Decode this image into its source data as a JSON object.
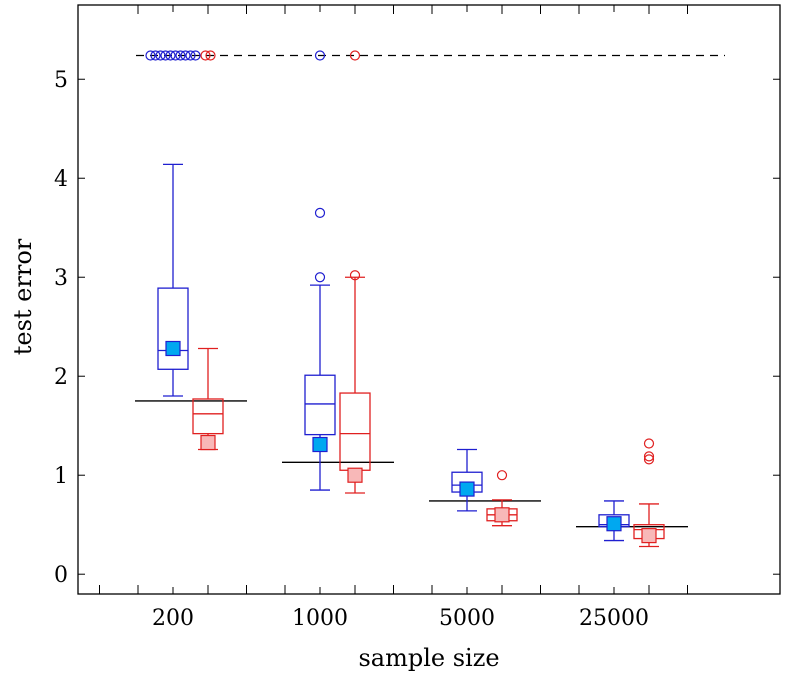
{
  "chart_data": {
    "type": "boxplot",
    "xlabel": "sample size",
    "ylabel": "test error",
    "categories": [
      "200",
      "1000",
      "5000",
      "25000"
    ],
    "ylim": [
      -0.2,
      5.75
    ],
    "yticks": [
      0,
      1,
      2,
      3,
      4,
      5
    ],
    "reference_line": {
      "y": 5.24,
      "style": "dashed",
      "color": "#000000"
    },
    "colors": {
      "series_a": "#1f1fd0",
      "series_b": "#e02020",
      "marker_a_fill": "#00a8f0",
      "marker_b_fill": "#f8b8b8"
    },
    "series": [
      {
        "color": "#1f1fd0",
        "boxes": [
          {
            "whisker_low": 1.8,
            "q1": 2.07,
            "median": 2.26,
            "q3": 2.89,
            "whisker_high": 4.14,
            "outliers": [
              5.24,
              5.24,
              5.24,
              5.24,
              5.24,
              5.24,
              5.24,
              5.24,
              5.24,
              5.24
            ],
            "marker": 2.28
          },
          {
            "whisker_low": 0.85,
            "q1": 1.41,
            "median": 1.72,
            "q3": 2.01,
            "whisker_high": 2.92,
            "outliers": [
              3.0,
              3.65,
              5.24
            ],
            "marker": 1.31
          },
          {
            "whisker_low": 0.64,
            "q1": 0.83,
            "median": 0.9,
            "q3": 1.03,
            "whisker_high": 1.26,
            "outliers": [],
            "marker": 0.86
          },
          {
            "whisker_low": 0.34,
            "q1": 0.48,
            "median": 0.5,
            "q3": 0.6,
            "whisker_high": 0.74,
            "outliers": [],
            "marker": 0.51
          }
        ]
      },
      {
        "color": "#e02020",
        "boxes": [
          {
            "whisker_low": 1.26,
            "q1": 1.42,
            "median": 1.62,
            "q3": 1.77,
            "whisker_high": 2.28,
            "outliers": [
              5.24,
              5.24
            ],
            "marker": 1.33
          },
          {
            "whisker_low": 0.82,
            "q1": 1.05,
            "median": 1.42,
            "q3": 1.83,
            "whisker_high": 3.0,
            "outliers": [
              3.02,
              5.24
            ],
            "marker": 1.0
          },
          {
            "whisker_low": 0.49,
            "q1": 0.54,
            "median": 0.6,
            "q3": 0.66,
            "whisker_high": 0.75,
            "outliers": [
              1.0
            ],
            "marker": 0.6
          },
          {
            "whisker_low": 0.28,
            "q1": 0.36,
            "median": 0.45,
            "q3": 0.5,
            "whisker_high": 0.71,
            "outliers": [
              1.16,
              1.19,
              1.32
            ],
            "marker": 0.39
          }
        ]
      }
    ],
    "baseline_segments": [
      1.75,
      1.13,
      0.74,
      0.48
    ]
  }
}
